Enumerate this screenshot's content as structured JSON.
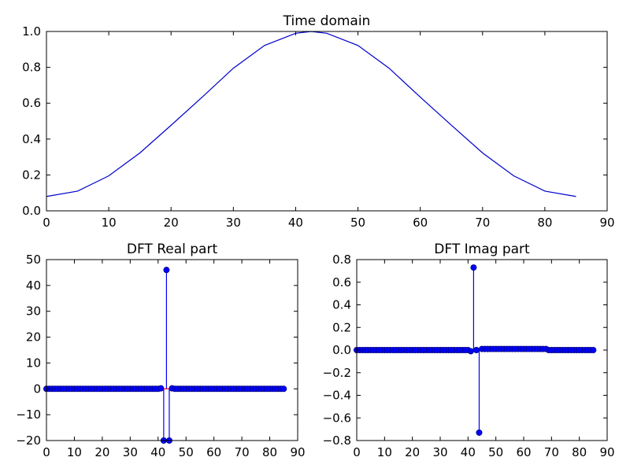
{
  "chart_data": [
    {
      "type": "line",
      "title": "Time domain",
      "xlabel": "",
      "ylabel": "",
      "xlim": [
        0,
        90
      ],
      "ylim": [
        0.0,
        1.0
      ],
      "xticks": [
        0,
        10,
        20,
        30,
        40,
        50,
        60,
        70,
        80,
        90
      ],
      "xtick_labels": [
        "0",
        "10",
        "20",
        "30",
        "40",
        "50",
        "60",
        "70",
        "80",
        "90"
      ],
      "yticks": [
        0.0,
        0.2,
        0.4,
        0.6,
        0.8,
        1.0
      ],
      "ytick_labels": [
        "0.0",
        "0.2",
        "0.4",
        "0.6",
        "0.8",
        "1.0"
      ],
      "grid": false,
      "series": [
        {
          "line_color": "#0000cc",
          "x": [
            0,
            5,
            10,
            15,
            20,
            25,
            30,
            35,
            40,
            42.5,
            45,
            50,
            55,
            60,
            65,
            70,
            75,
            80,
            85
          ],
          "y": [
            0.08,
            0.11,
            0.195,
            0.323,
            0.477,
            0.634,
            0.795,
            0.922,
            0.99,
            1.0,
            0.99,
            0.922,
            0.795,
            0.634,
            0.477,
            0.323,
            0.195,
            0.11,
            0.08
          ]
        }
      ]
    },
    {
      "type": "stem",
      "title": "DFT Real part",
      "xlabel": "",
      "ylabel": "",
      "xlim": [
        0,
        90
      ],
      "ylim": [
        -20,
        50
      ],
      "xticks": [
        0,
        10,
        20,
        30,
        40,
        50,
        60,
        70,
        80,
        90
      ],
      "xtick_labels": [
        "0",
        "10",
        "20",
        "30",
        "40",
        "50",
        "60",
        "70",
        "80",
        "90"
      ],
      "yticks": [
        -20,
        -10,
        0,
        10,
        20,
        30,
        40,
        50
      ],
      "ytick_labels": [
        "−20",
        "−10",
        "0",
        "10",
        "20",
        "30",
        "40",
        "50"
      ],
      "grid": false,
      "series": [
        {
          "marker_color": "#0000ff",
          "baseline_color": "#ff0000",
          "n": 86,
          "default_value": 0,
          "special": [
            {
              "x": 41,
              "y": 0.2
            },
            {
              "x": 42,
              "y": -20
            },
            {
              "x": 43,
              "y": 46
            },
            {
              "x": 44,
              "y": -20
            },
            {
              "x": 45,
              "y": 0.2
            }
          ]
        }
      ]
    },
    {
      "type": "stem",
      "title": "DFT Imag part",
      "xlabel": "",
      "ylabel": "",
      "xlim": [
        0,
        90
      ],
      "ylim": [
        -0.8,
        0.8
      ],
      "xticks": [
        0,
        10,
        20,
        30,
        40,
        50,
        60,
        70,
        80,
        90
      ],
      "xtick_labels": [
        "0",
        "10",
        "20",
        "30",
        "40",
        "50",
        "60",
        "70",
        "80",
        "90"
      ],
      "yticks": [
        -0.8,
        -0.6,
        -0.4,
        -0.2,
        0.0,
        0.2,
        0.4,
        0.6,
        0.8
      ],
      "ytick_labels": [
        "−0.8",
        "−0.6",
        "−0.4",
        "−0.2",
        "0.0",
        "0.2",
        "0.4",
        "0.6",
        "0.8"
      ],
      "grid": false,
      "series": [
        {
          "marker_color": "#0000ff",
          "baseline_color": "#ff0000",
          "n": 86,
          "default_value": 0,
          "special": [
            {
              "x": 41,
              "y": -0.01
            },
            {
              "x": 42,
              "y": 0.73
            },
            {
              "x": 43,
              "y": 0.0
            },
            {
              "x": 44,
              "y": -0.73
            },
            {
              "x": 45,
              "y": 0.01
            },
            {
              "x": 46,
              "y": 0.01
            }
          ],
          "ranges": [
            {
              "from": 47,
              "to": 68,
              "y": 0.01
            },
            {
              "from": 69,
              "to": 85,
              "y": 0.0
            },
            {
              "from": 0,
              "to": 40,
              "y": 0.0
            }
          ]
        }
      ]
    }
  ]
}
